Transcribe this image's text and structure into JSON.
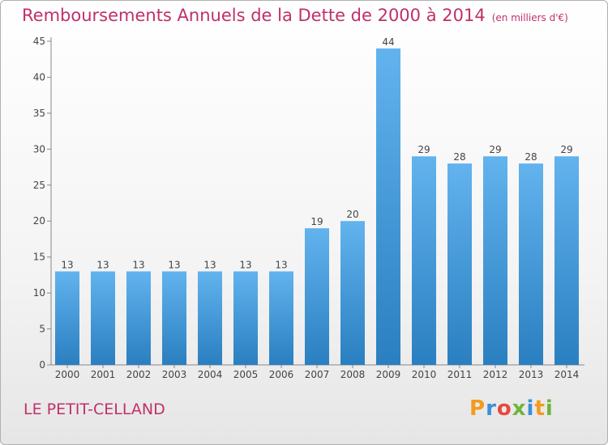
{
  "chart_data": {
    "type": "bar",
    "title": "Remboursements Annuels de la Dette de 2000 à 2014",
    "subtitle": "(en milliers d'€)",
    "categories": [
      "2000",
      "2001",
      "2002",
      "2003",
      "2004",
      "2005",
      "2006",
      "2007",
      "2008",
      "2009",
      "2010",
      "2011",
      "2012",
      "2013",
      "2014"
    ],
    "values": [
      13,
      13,
      13,
      13,
      13,
      13,
      13,
      19,
      20,
      44,
      29,
      28,
      29,
      28,
      29
    ],
    "ylim": [
      0,
      45
    ],
    "yticks": [
      0,
      5,
      10,
      15,
      20,
      25,
      30,
      35,
      40,
      45
    ],
    "grid": false,
    "xlabel": "",
    "ylabel": ""
  },
  "commune": "LE PETIT-CELLAND",
  "logo": "Proxiti",
  "colors": {
    "bar_light": "#5fb0ec",
    "bar_dark": "#2a7fc0",
    "title": "#c0306a"
  }
}
